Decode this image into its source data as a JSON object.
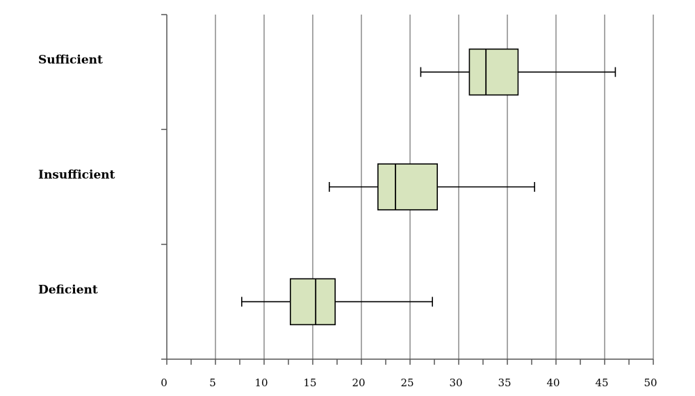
{
  "chart_data": {
    "type": "boxplot",
    "orientation": "horizontal",
    "title": "",
    "xlabel": "",
    "ylabel": "",
    "xlim": [
      0,
      50
    ],
    "x_major_ticks": [
      0,
      5,
      10,
      15,
      20,
      25,
      30,
      35,
      40,
      45,
      50
    ],
    "x_tick_labels": [
      "0",
      "5",
      "10",
      "15",
      "20",
      "25",
      "30",
      "35",
      "40",
      "45",
      "50"
    ],
    "grid": true,
    "categories": [
      "Sufficient",
      "Insufficient",
      "Deficient"
    ],
    "series": [
      {
        "category": "Sufficient",
        "min": 26.1,
        "q1": 31.1,
        "median": 32.8,
        "q3": 36.1,
        "max": 46.1
      },
      {
        "category": "Insufficient",
        "min": 16.7,
        "q1": 21.7,
        "median": 23.5,
        "q3": 27.8,
        "max": 37.8
      },
      {
        "category": "Deficient",
        "min": 7.7,
        "q1": 12.7,
        "median": 15.3,
        "q3": 17.3,
        "max": 27.3
      }
    ],
    "box_color": "#d7e4bd"
  }
}
